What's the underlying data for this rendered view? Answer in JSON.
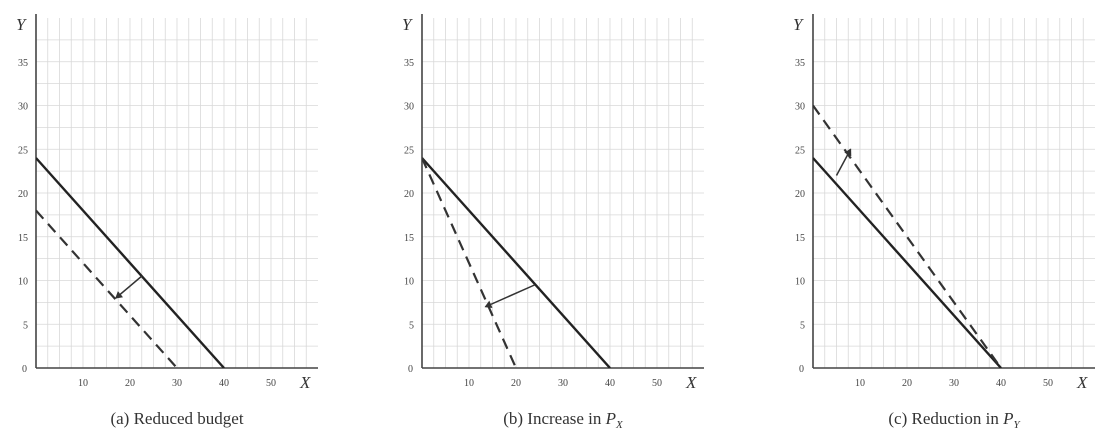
{
  "chart_data": [
    {
      "type": "line",
      "caption_label": "(a)",
      "caption_text": "Reduced budget",
      "caption_symbol": "",
      "caption_subscript": "",
      "xlabel": "X",
      "ylabel": "Y",
      "xlim": [
        0,
        60
      ],
      "ylim": [
        0,
        40
      ],
      "x_ticks": [
        10,
        20,
        30,
        40,
        50
      ],
      "y_ticks": [
        5,
        10,
        15,
        20,
        25,
        30,
        35
      ],
      "origin_label": "0",
      "grid": true,
      "series": [
        {
          "style": "solid",
          "x": [
            0,
            40
          ],
          "y": [
            24,
            0
          ]
        },
        {
          "style": "dashed",
          "x": [
            0,
            30
          ],
          "y": [
            18,
            0
          ]
        }
      ],
      "shift_arrow": {
        "from": [
          22.5,
          10.5
        ],
        "to": [
          17,
          8
        ]
      }
    },
    {
      "type": "line",
      "caption_label": "(b)",
      "caption_text": "Increase in ",
      "caption_symbol": "P",
      "caption_subscript": "X",
      "xlabel": "X",
      "ylabel": "Y",
      "xlim": [
        0,
        60
      ],
      "ylim": [
        0,
        40
      ],
      "x_ticks": [
        10,
        20,
        30,
        40,
        50
      ],
      "y_ticks": [
        5,
        10,
        15,
        20,
        25,
        30,
        35
      ],
      "origin_label": "0",
      "grid": true,
      "series": [
        {
          "style": "solid",
          "x": [
            0,
            40
          ],
          "y": [
            24,
            0
          ]
        },
        {
          "style": "dashed",
          "x": [
            0,
            20
          ],
          "y": [
            24,
            0
          ]
        }
      ],
      "shift_arrow": {
        "from": [
          24,
          9.5
        ],
        "to": [
          13.5,
          7
        ]
      }
    },
    {
      "type": "line",
      "caption_label": "(c)",
      "caption_text": "Reduction in ",
      "caption_symbol": "P",
      "caption_subscript": "Y",
      "xlabel": "X",
      "ylabel": "Y",
      "xlim": [
        0,
        60
      ],
      "ylim": [
        0,
        40
      ],
      "x_ticks": [
        10,
        20,
        30,
        40,
        50
      ],
      "y_ticks": [
        5,
        10,
        15,
        20,
        25,
        30,
        35
      ],
      "origin_label": "0",
      "grid": true,
      "series": [
        {
          "style": "solid",
          "x": [
            0,
            40
          ],
          "y": [
            24,
            0
          ]
        },
        {
          "style": "dashed",
          "x": [
            0,
            40
          ],
          "y": [
            30,
            0
          ]
        }
      ],
      "shift_arrow": {
        "from": [
          5,
          22
        ],
        "to": [
          8,
          25
        ]
      }
    }
  ]
}
